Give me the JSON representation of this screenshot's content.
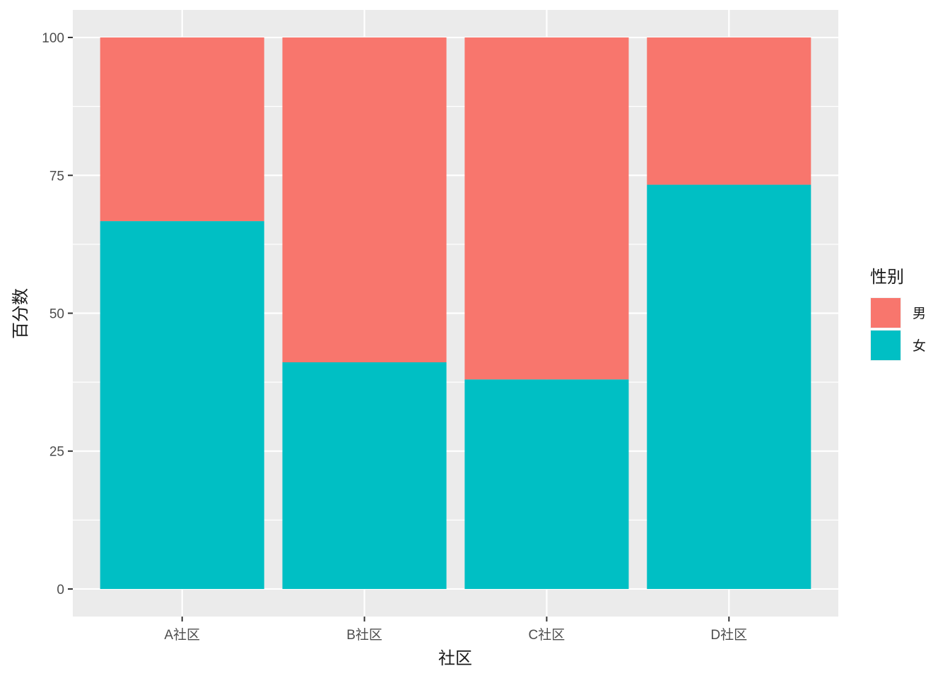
{
  "chart_data": {
    "type": "bar",
    "stacked": true,
    "categories": [
      "A社区",
      "B社区",
      "C社区",
      "D社区"
    ],
    "series": [
      {
        "name": "男",
        "values": [
          33.3,
          58.9,
          62.0,
          26.7
        ],
        "color": "#F8766D"
      },
      {
        "name": "女",
        "values": [
          66.7,
          41.1,
          38.0,
          73.3
        ],
        "color": "#00BFC4"
      }
    ],
    "xlabel": "社区",
    "ylabel": "百分数",
    "ylim": [
      -5,
      105
    ],
    "yticks": [
      0,
      25,
      50,
      75,
      100
    ],
    "grid": true,
    "legend": {
      "title": "性别",
      "position": "right"
    },
    "panel_background": "#EBEBEB",
    "grid_color": "#FFFFFF"
  }
}
